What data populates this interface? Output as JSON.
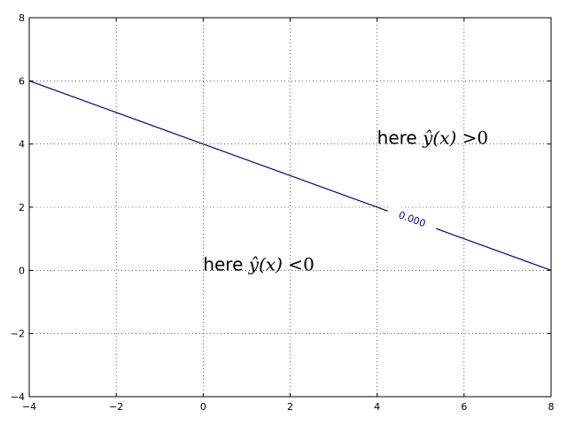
{
  "chart_data": {
    "type": "line",
    "title": "",
    "xlabel": "",
    "ylabel": "",
    "xlim": [
      -4,
      8
    ],
    "ylim": [
      -4,
      8
    ],
    "xticks": [
      -4,
      -2,
      0,
      2,
      4,
      6,
      8
    ],
    "yticks": [
      -4,
      -2,
      0,
      2,
      4,
      6,
      8
    ],
    "grid": true,
    "series": [
      {
        "x": [
          -4,
          8
        ],
        "y": [
          6,
          0
        ],
        "color": "#000080"
      }
    ],
    "contour_label": {
      "text": "0.000",
      "x": 4.8,
      "y": 1.6
    },
    "annotations": [
      {
        "word": "here",
        "math": "ŷ(x)",
        "op": ">",
        "value": "0",
        "x": 4.0,
        "y": 4.0
      },
      {
        "word": "here",
        "math": "ŷ(x)",
        "op": "<",
        "value": "0",
        "x": 0.0,
        "y": 0.0
      }
    ]
  }
}
